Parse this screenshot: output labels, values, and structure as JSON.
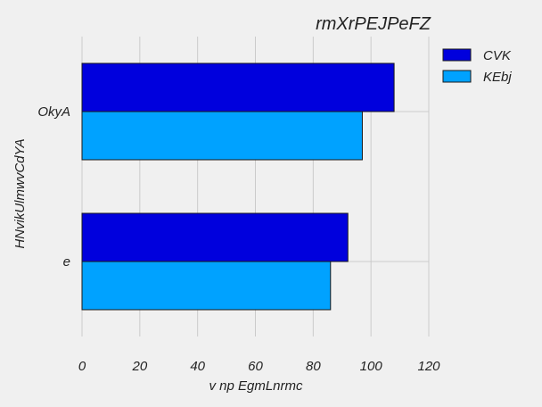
{
  "chart_data": {
    "type": "bar",
    "orientation": "horizontal",
    "title": "rmXrPEJPeFZ",
    "xlabel": "v np EgmLnrmc",
    "ylabel": "HNvikUlmwvCdYA",
    "categories": [
      "OkyA",
      "e"
    ],
    "series": [
      {
        "name": "CVK",
        "values": [
          108,
          92
        ],
        "color": "#0000dd"
      },
      {
        "name": "KEbj",
        "values": [
          97,
          86
        ],
        "color": "#00a2ff"
      }
    ],
    "xlim": [
      0,
      120
    ],
    "xticks": [
      "0",
      "20",
      "40",
      "60",
      "80",
      "100",
      "120"
    ],
    "grid": true,
    "legend_position": "top-right"
  }
}
